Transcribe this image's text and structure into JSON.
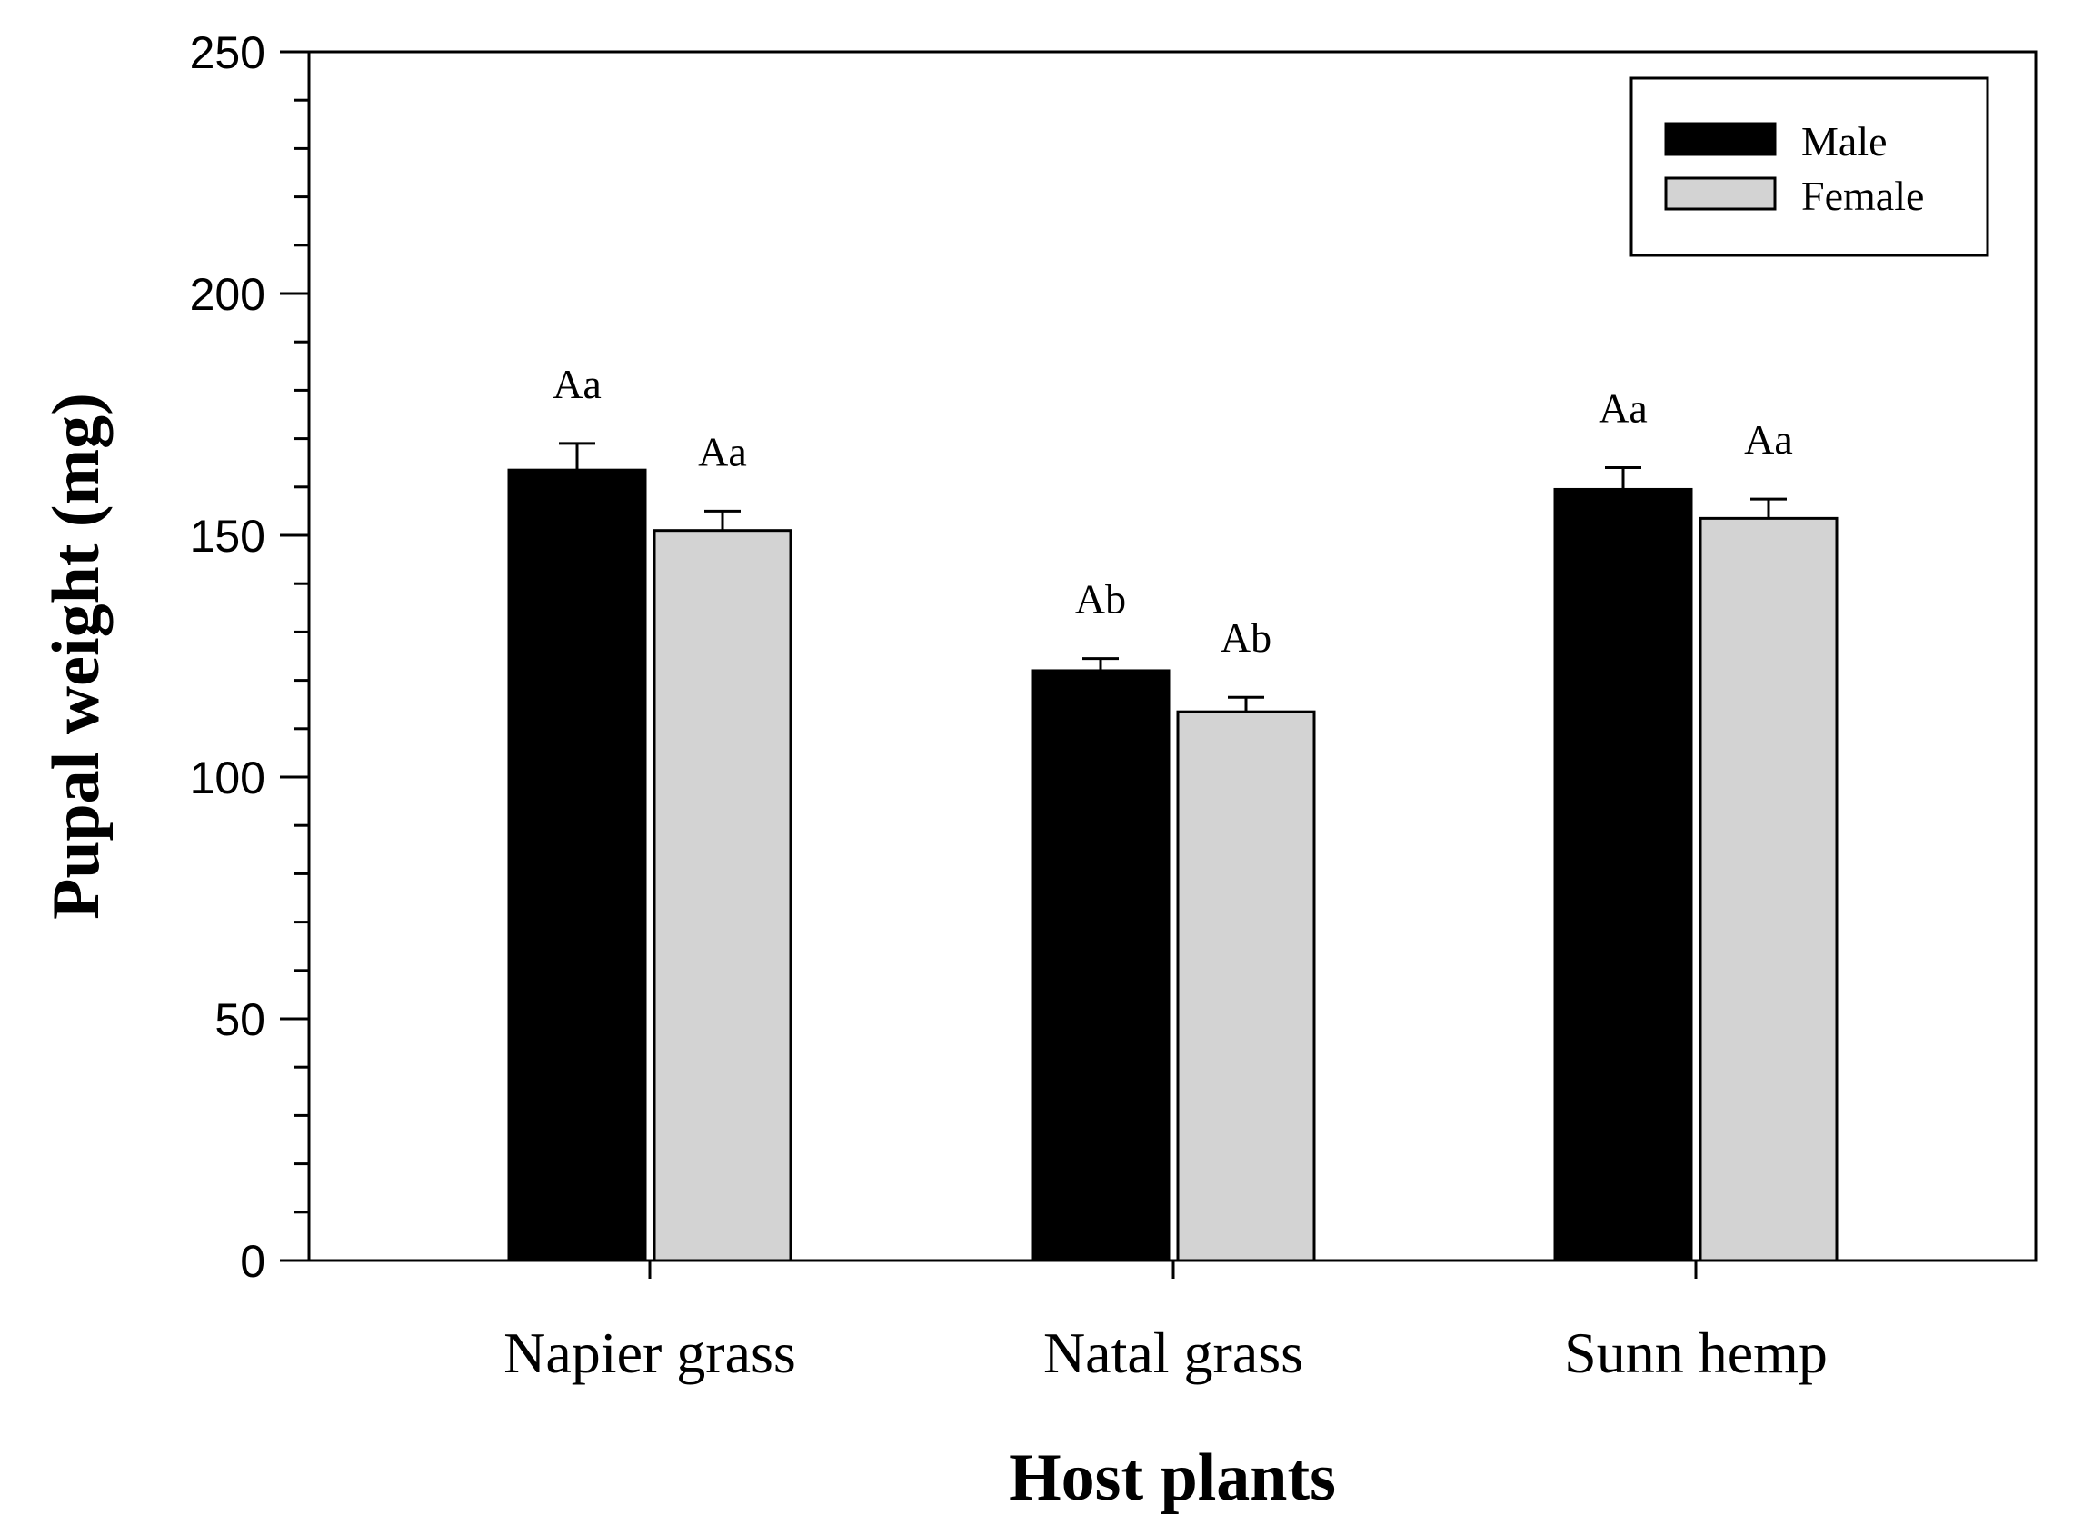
{
  "chart_data": {
    "type": "bar",
    "title": "",
    "xlabel": "Host plants",
    "ylabel": "Pupal weight (mg)",
    "ylim": [
      0,
      250
    ],
    "yticks": [
      0,
      50,
      100,
      150,
      200,
      250
    ],
    "categories": [
      "Napier grass",
      "Natal grass",
      "Sunn hemp"
    ],
    "series": [
      {
        "name": "Male",
        "color": "#000000",
        "values": [
          163.5,
          122,
          159.5
        ],
        "errors": [
          5.5,
          2.5,
          4.5
        ],
        "significance": [
          "Aa",
          "Ab",
          "Aa"
        ]
      },
      {
        "name": "Female",
        "color": "#d3d3d3",
        "values": [
          151,
          113.5,
          153.5
        ],
        "errors": [
          4,
          3,
          4
        ],
        "significance": [
          "Aa",
          "Ab",
          "Aa"
        ]
      }
    ],
    "legend": {
      "position": "top-right"
    },
    "grid": false
  }
}
